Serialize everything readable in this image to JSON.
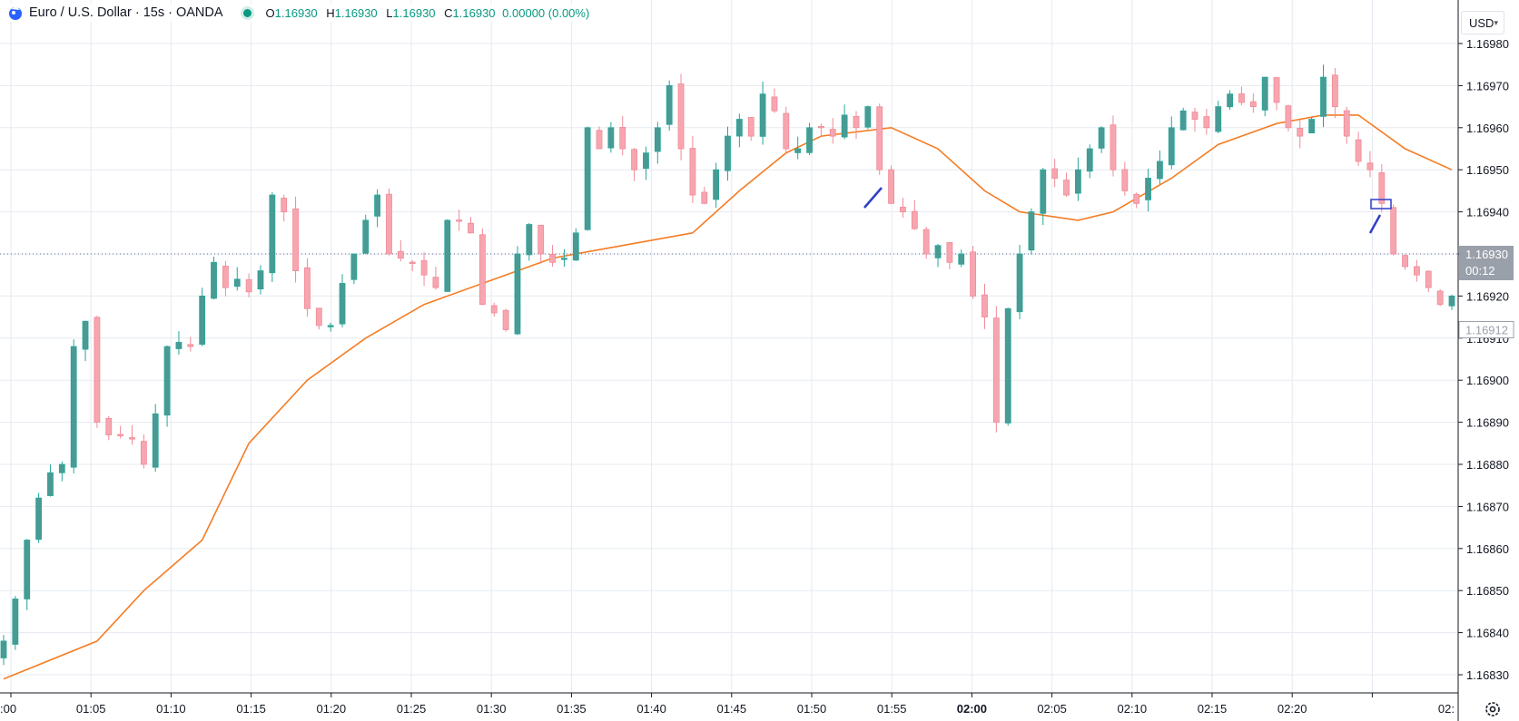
{
  "header": {
    "title": "Euro / U.S. Dollar · 15s · OANDA",
    "o_label": "O",
    "o_value": "1.16930",
    "h_label": "H",
    "h_value": "1.16930",
    "l_label": "L",
    "l_value": "1.16930",
    "c_label": "C",
    "c_value": "1.16930",
    "change": "0.00000 (0.00%)"
  },
  "currency_button": {
    "label": "USD"
  },
  "price_axis": {
    "ticks": [
      "1.16830",
      "1.16840",
      "1.16850",
      "1.16860",
      "1.16870",
      "1.16880",
      "1.16890",
      "1.16900",
      "1.16910",
      "1.16920",
      "1.16930",
      "1.16940",
      "1.16950",
      "1.16960",
      "1.16970",
      "1.16980"
    ],
    "current_price": "1.16930",
    "countdown": "00:12",
    "marker_price": "1.16912"
  },
  "time_axis": {
    "ticks": [
      ":00",
      "01:05",
      "01:10",
      "01:15",
      "01:20",
      "01:25",
      "01:30",
      "01:35",
      "01:40",
      "01:45",
      "01:50",
      "01:55",
      "02:00",
      "02:05",
      "02:10",
      "02:15",
      "02:20",
      "02:"
    ]
  },
  "colors": {
    "up": "#26a69a",
    "up_fill": "#4a9a94",
    "down": "#f7a6b0",
    "down_border": "#ef8a97",
    "ma": "#f57c23",
    "grid": "#e6eaf0",
    "price_line": "#5b6aa0",
    "current_badge": "#9aa0aa",
    "drawing": "#2f3fc8"
  },
  "chart_data": {
    "type": "candlestick",
    "symbol": "EURUSD",
    "timeframe": "15s",
    "ylim": [
      1.16825,
      1.16985
    ],
    "x_ticks": [
      ":00",
      "01:05",
      "01:10",
      "01:15",
      "01:20",
      "01:25",
      "01:30",
      "01:35",
      "01:40",
      "01:45",
      "01:50",
      "01:55",
      "02:00",
      "02:05",
      "02:10",
      "02:15",
      "02:20",
      "02:"
    ],
    "close_path": [
      [
        0,
        1.16838
      ],
      [
        1,
        1.16848
      ],
      [
        2,
        1.16862
      ],
      [
        3,
        1.16872
      ],
      [
        4,
        1.16878
      ],
      [
        5,
        1.1688
      ],
      [
        6,
        1.16908
      ],
      [
        7,
        1.16914
      ],
      [
        8,
        1.1689
      ],
      [
        9,
        1.16887
      ],
      [
        10,
        1.16887
      ],
      [
        11,
        1.16886
      ],
      [
        12,
        1.1688
      ],
      [
        13,
        1.16892
      ],
      [
        14,
        1.16908
      ],
      [
        15,
        1.16909
      ],
      [
        16,
        1.16908
      ],
      [
        17,
        1.1692
      ],
      [
        18,
        1.16928
      ],
      [
        19,
        1.16922
      ],
      [
        20,
        1.16924
      ],
      [
        21,
        1.16921
      ],
      [
        22,
        1.16926
      ],
      [
        23,
        1.16944
      ],
      [
        24,
        1.1694
      ],
      [
        25,
        1.16926
      ],
      [
        26,
        1.16917
      ],
      [
        27,
        1.16913
      ],
      [
        28,
        1.16913
      ],
      [
        29,
        1.16923
      ],
      [
        30,
        1.1693
      ],
      [
        31,
        1.16938
      ],
      [
        32,
        1.16944
      ],
      [
        33,
        1.1693
      ],
      [
        34,
        1.16929
      ],
      [
        35,
        1.16928
      ],
      [
        36,
        1.16925
      ],
      [
        37,
        1.16922
      ],
      [
        38,
        1.16938
      ],
      [
        39,
        1.16938
      ],
      [
        40,
        1.16935
      ],
      [
        41,
        1.16918
      ],
      [
        42,
        1.16916
      ],
      [
        43,
        1.16912
      ],
      [
        44,
        1.1693
      ],
      [
        45,
        1.16937
      ],
      [
        46,
        1.1693
      ],
      [
        47,
        1.16928
      ],
      [
        48,
        1.16929
      ],
      [
        49,
        1.16935
      ],
      [
        50,
        1.1696
      ],
      [
        51,
        1.16955
      ],
      [
        52,
        1.1696
      ],
      [
        53,
        1.16955
      ],
      [
        54,
        1.1695
      ],
      [
        55,
        1.16954
      ],
      [
        56,
        1.1696
      ],
      [
        57,
        1.1697
      ],
      [
        58,
        1.16955
      ],
      [
        59,
        1.16944
      ],
      [
        60,
        1.16942
      ],
      [
        61,
        1.1695
      ],
      [
        62,
        1.16958
      ],
      [
        63,
        1.16962
      ],
      [
        64,
        1.16958
      ],
      [
        65,
        1.16968
      ],
      [
        66,
        1.16964
      ],
      [
        67,
        1.16955
      ],
      [
        68,
        1.16955
      ],
      [
        69,
        1.1696
      ],
      [
        70,
        1.1696
      ],
      [
        71,
        1.16958
      ],
      [
        72,
        1.16963
      ],
      [
        73,
        1.1696
      ],
      [
        74,
        1.16965
      ],
      [
        75,
        1.1695
      ],
      [
        76,
        1.16942
      ],
      [
        77,
        1.1694
      ],
      [
        78,
        1.16936
      ],
      [
        79,
        1.1693
      ],
      [
        80,
        1.16932
      ],
      [
        81,
        1.16928
      ],
      [
        82,
        1.1693
      ],
      [
        83,
        1.1692
      ],
      [
        84,
        1.16915
      ],
      [
        85,
        1.1689
      ],
      [
        86,
        1.16917
      ],
      [
        87,
        1.1693
      ],
      [
        88,
        1.1694
      ],
      [
        89,
        1.1695
      ],
      [
        90,
        1.16948
      ],
      [
        91,
        1.16944
      ],
      [
        92,
        1.1695
      ],
      [
        93,
        1.16955
      ],
      [
        94,
        1.1696
      ],
      [
        95,
        1.1695
      ],
      [
        96,
        1.16945
      ],
      [
        97,
        1.16942
      ],
      [
        98,
        1.16948
      ],
      [
        99,
        1.16952
      ],
      [
        100,
        1.1696
      ],
      [
        101,
        1.16964
      ],
      [
        102,
        1.16962
      ],
      [
        103,
        1.1696
      ],
      [
        104,
        1.16965
      ],
      [
        105,
        1.16968
      ],
      [
        106,
        1.16966
      ],
      [
        107,
        1.16965
      ],
      [
        108,
        1.16972
      ],
      [
        109,
        1.16966
      ],
      [
        110,
        1.1696
      ],
      [
        111,
        1.16958
      ],
      [
        112,
        1.16962
      ],
      [
        113,
        1.16972
      ],
      [
        114,
        1.16965
      ],
      [
        115,
        1.16958
      ],
      [
        116,
        1.16952
      ],
      [
        117,
        1.1695
      ],
      [
        118,
        1.16942
      ],
      [
        119,
        1.1693
      ],
      [
        120,
        1.16927
      ],
      [
        121,
        1.16925
      ],
      [
        122,
        1.16922
      ],
      [
        123,
        1.16918
      ],
      [
        124,
        1.1692
      ]
    ],
    "moving_average": [
      [
        0,
        1.16829
      ],
      [
        8,
        1.16838
      ],
      [
        12,
        1.1685
      ],
      [
        17,
        1.16862
      ],
      [
        21,
        1.16885
      ],
      [
        26,
        1.169
      ],
      [
        31,
        1.1691
      ],
      [
        36,
        1.16918
      ],
      [
        41,
        1.16923
      ],
      [
        47,
        1.16929
      ],
      [
        53,
        1.16932
      ],
      [
        59,
        1.16935
      ],
      [
        63,
        1.16945
      ],
      [
        67,
        1.16954
      ],
      [
        70,
        1.16958
      ],
      [
        76,
        1.1696
      ],
      [
        80,
        1.16955
      ],
      [
        84,
        1.16945
      ],
      [
        87,
        1.1694
      ],
      [
        92,
        1.16938
      ],
      [
        95,
        1.1694
      ],
      [
        100,
        1.16948
      ],
      [
        104,
        1.16956
      ],
      [
        109,
        1.16961
      ],
      [
        113,
        1.16963
      ],
      [
        116,
        1.16963
      ],
      [
        120,
        1.16955
      ],
      [
        124,
        1.1695
      ]
    ],
    "current_price": 1.1693,
    "marker_price": 1.16912,
    "grid": true
  }
}
